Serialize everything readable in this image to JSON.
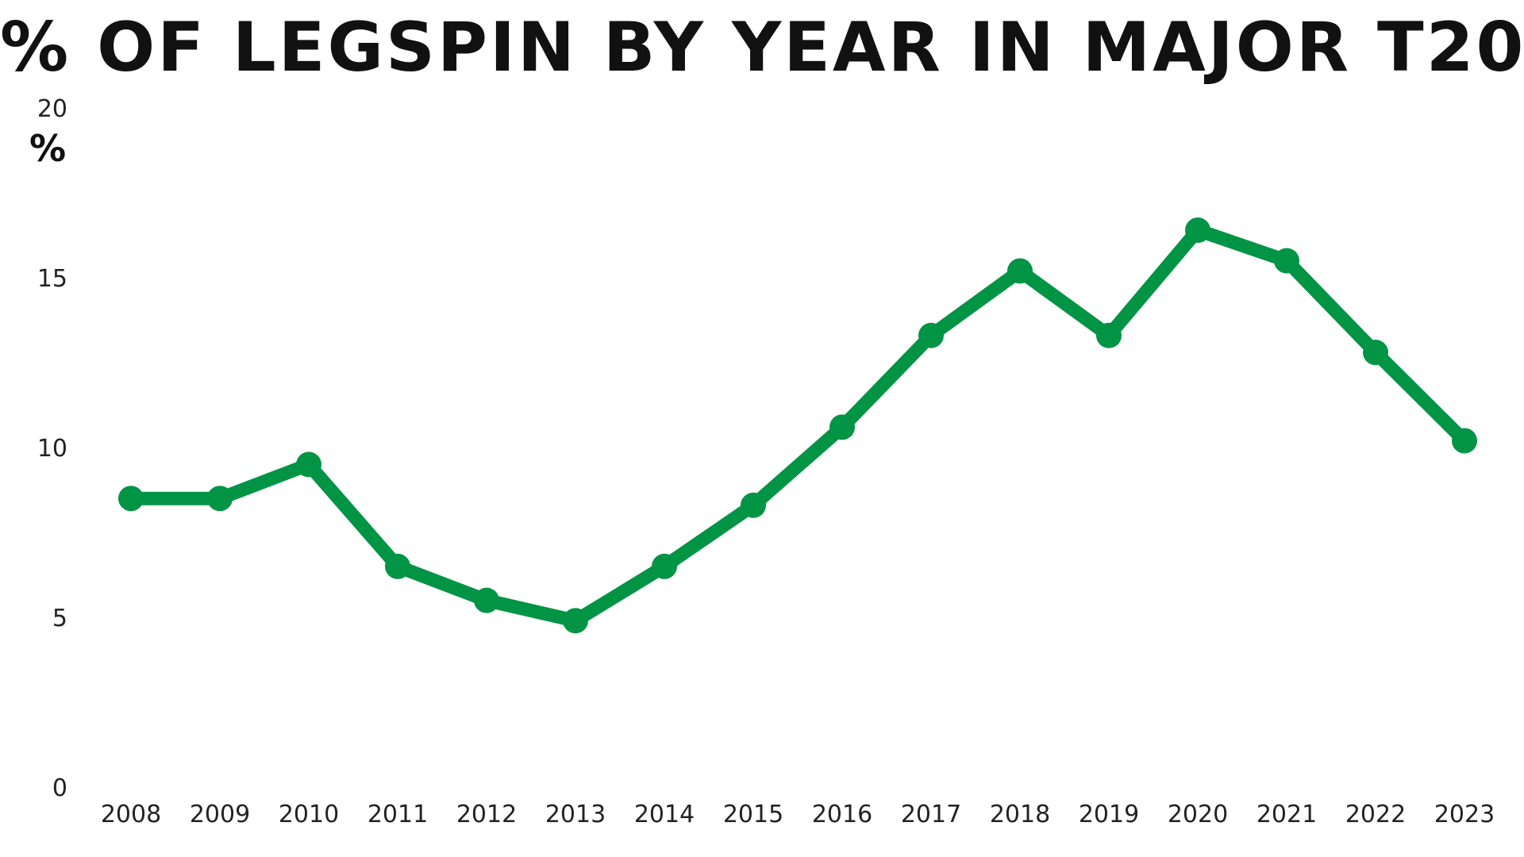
{
  "chart_data": {
    "type": "line",
    "title": "% of Legspin by Year in Major T20",
    "xlabel": "",
    "ylabel": "%",
    "categories": [
      "2008",
      "2009",
      "2010",
      "2011",
      "2012",
      "2013",
      "2014",
      "2015",
      "2016",
      "2017",
      "2018",
      "2019",
      "2020",
      "2021",
      "2022",
      "2023"
    ],
    "series": [
      {
        "values": [
          8.5,
          8.5,
          9.5,
          6.5,
          5.5,
          4.9,
          6.5,
          8.3,
          10.6,
          13.3,
          15.2,
          13.3,
          16.4,
          15.5,
          12.8,
          10.2
        ]
      }
    ],
    "ylim": [
      0,
      20
    ],
    "yticks": [
      0,
      5,
      10,
      15,
      20
    ],
    "grid": false,
    "color": "#019445"
  }
}
